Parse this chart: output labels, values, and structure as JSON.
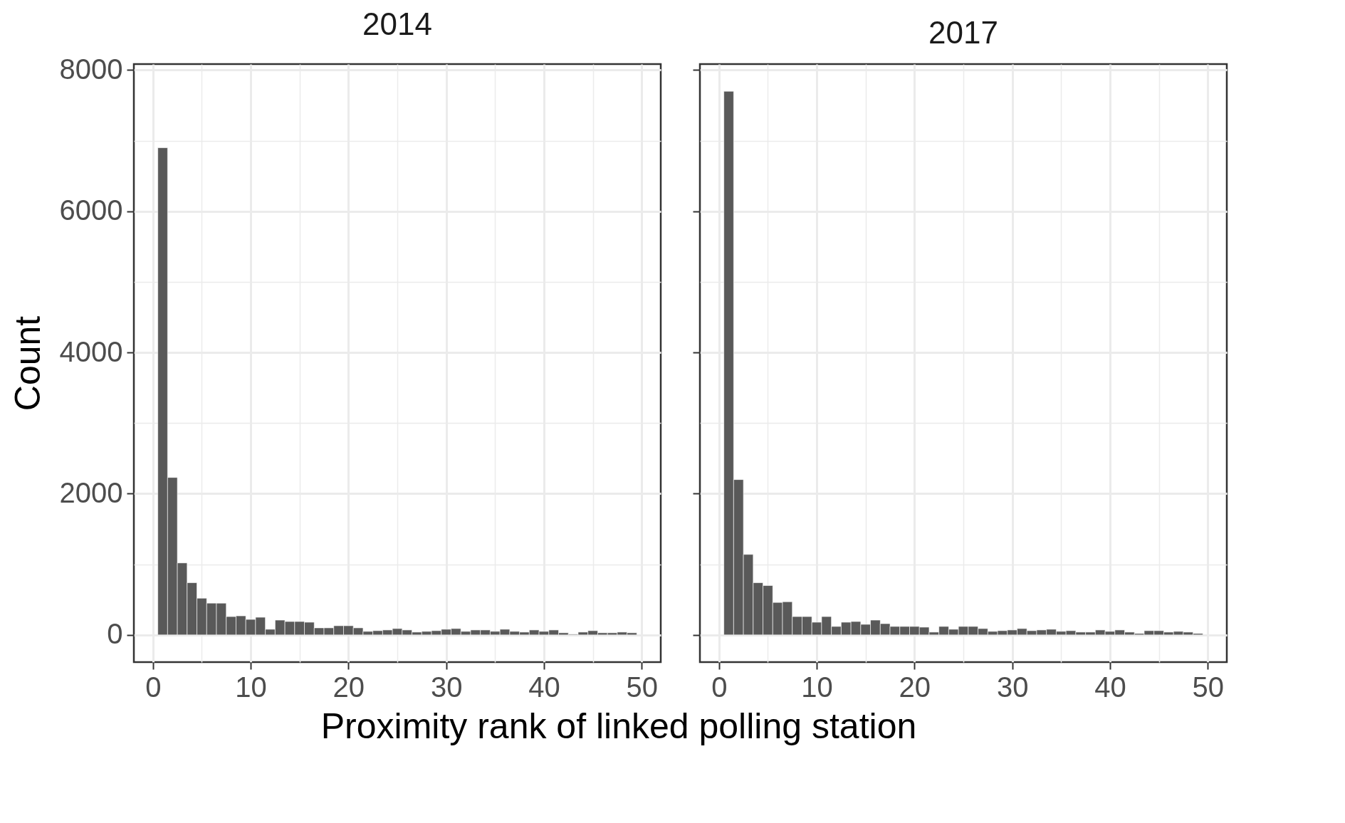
{
  "chart_data": [
    {
      "type": "histogram",
      "title": "2014",
      "xlabel": "Proximity rank of linked polling station",
      "ylabel": "Count",
      "color": "#595959",
      "grid": true,
      "bins": [
        0.5,
        1.5,
        2.5,
        3.5,
        4.5,
        5.5,
        6.5,
        7.5,
        8.5,
        9.5,
        10.5,
        11.5,
        12.5,
        13.5,
        14.5,
        15.5,
        16.5,
        17.5,
        18.5,
        19.5,
        20.5,
        21.5,
        22.5,
        23.5,
        24.5,
        25.5,
        26.5,
        27.5,
        28.5,
        29.5,
        30.5,
        31.5,
        32.5,
        33.5,
        34.5,
        35.5,
        36.5,
        37.5,
        38.5,
        39.5,
        40.5,
        41.5,
        42.5,
        43.5,
        44.5,
        45.5,
        46.5,
        47.5,
        48.5,
        49.5
      ],
      "values": [
        6900,
        2230,
        1020,
        740,
        520,
        450,
        450,
        260,
        270,
        220,
        250,
        80,
        210,
        190,
        190,
        180,
        100,
        100,
        130,
        130,
        100,
        50,
        60,
        70,
        90,
        70,
        40,
        50,
        60,
        80,
        90,
        50,
        70,
        70,
        50,
        80,
        50,
        40,
        70,
        50,
        70,
        30,
        10,
        40,
        60,
        30,
        30,
        40,
        30
      ],
      "xlim": [
        -1.95,
        51.95
      ],
      "xticks": [
        0,
        {
          "value": 5,
          "label": null
        },
        10,
        {
          "value": 15,
          "label": null
        },
        20,
        {
          "value": 25,
          "label": null
        },
        30,
        {
          "value": 35,
          "label": null
        },
        40,
        {
          "value": 45,
          "label": null
        },
        50
      ],
      "ylim": [
        -385,
        8085
      ],
      "yticks": [
        0,
        {
          "value": 1000,
          "label": null
        },
        2000,
        {
          "value": 3000,
          "label": null
        },
        4000,
        {
          "value": 5000,
          "label": null
        },
        6000,
        {
          "value": 7000,
          "label": null
        },
        8000
      ]
    },
    {
      "type": "histogram",
      "title": "2017",
      "color": "#595959",
      "grid": true,
      "tick_labels": "x",
      "bins": [
        0.5,
        1.5,
        2.5,
        3.5,
        4.5,
        5.5,
        6.5,
        7.5,
        8.5,
        9.5,
        10.5,
        11.5,
        12.5,
        13.5,
        14.5,
        15.5,
        16.5,
        17.5,
        18.5,
        19.5,
        20.5,
        21.5,
        22.5,
        23.5,
        24.5,
        25.5,
        26.5,
        27.5,
        28.5,
        29.5,
        30.5,
        31.5,
        32.5,
        33.5,
        34.5,
        35.5,
        36.5,
        37.5,
        38.5,
        39.5,
        40.5,
        41.5,
        42.5,
        43.5,
        44.5,
        45.5,
        46.5,
        47.5,
        48.5,
        49.5
      ],
      "values": [
        7700,
        2200,
        1140,
        740,
        700,
        460,
        470,
        260,
        260,
        180,
        260,
        120,
        180,
        190,
        150,
        210,
        160,
        120,
        120,
        120,
        110,
        40,
        120,
        80,
        120,
        120,
        90,
        50,
        60,
        70,
        90,
        60,
        70,
        80,
        50,
        60,
        40,
        40,
        70,
        50,
        70,
        40,
        20,
        60,
        60,
        40,
        50,
        40,
        20
      ],
      "xlim": [
        -1.95,
        51.95
      ],
      "xticks": [
        0,
        {
          "value": 5,
          "label": null
        },
        10,
        {
          "value": 15,
          "label": null
        },
        20,
        {
          "value": 25,
          "label": null
        },
        30,
        {
          "value": 35,
          "label": null
        },
        40,
        {
          "value": 45,
          "label": null
        },
        50
      ],
      "ylim": [
        -385,
        8085
      ],
      "yticks": [
        0,
        {
          "value": 1000,
          "label": null
        },
        2000,
        {
          "value": 3000,
          "label": null
        },
        4000,
        {
          "value": 5000,
          "label": null
        },
        6000,
        {
          "value": 7000,
          "label": null
        },
        8000
      ]
    }
  ]
}
